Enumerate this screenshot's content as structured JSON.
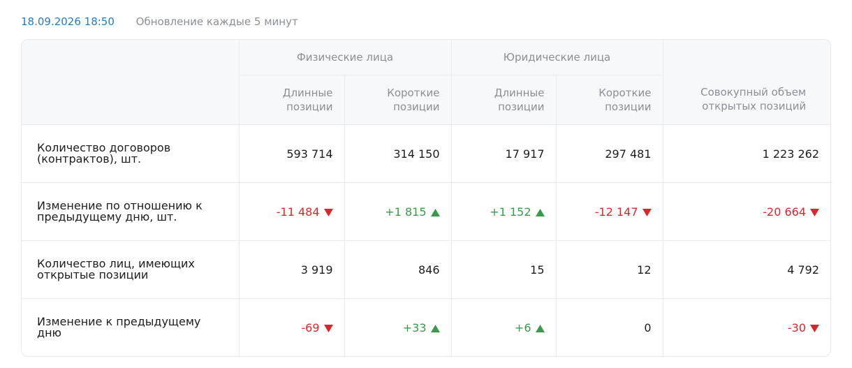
{
  "header": {
    "date": "18.09.2026 18:50",
    "update": "Обновление каждые 5 минут"
  },
  "table": {
    "groups": [
      "Физические лица",
      "Юридические лица"
    ],
    "columns": [
      "Длинные позиции",
      "Короткие позиции",
      "Длинные позиции",
      "Короткие позиции"
    ],
    "total_column": "Совокупный объем открытых позиций",
    "rows": [
      {
        "label": "Количество договоров (контрактов), шт.",
        "values": [
          "593 714",
          "314 150",
          "17 917",
          "297 481",
          "1 223 262"
        ]
      },
      {
        "label": "Изменение по отношению к предыдущему дню, шт.",
        "values": [
          "-11 484",
          "+1 815",
          "+1 152",
          "-12 147",
          "-20 664"
        ]
      },
      {
        "label": "Количество лиц, имеющих открытые позиции",
        "values": [
          "3 919",
          "846",
          "15",
          "12",
          "4 792"
        ]
      },
      {
        "label": "Изменение к предыдущему дню",
        "values": [
          "-69",
          "+33",
          "+6",
          "0",
          "-30"
        ]
      }
    ]
  }
}
